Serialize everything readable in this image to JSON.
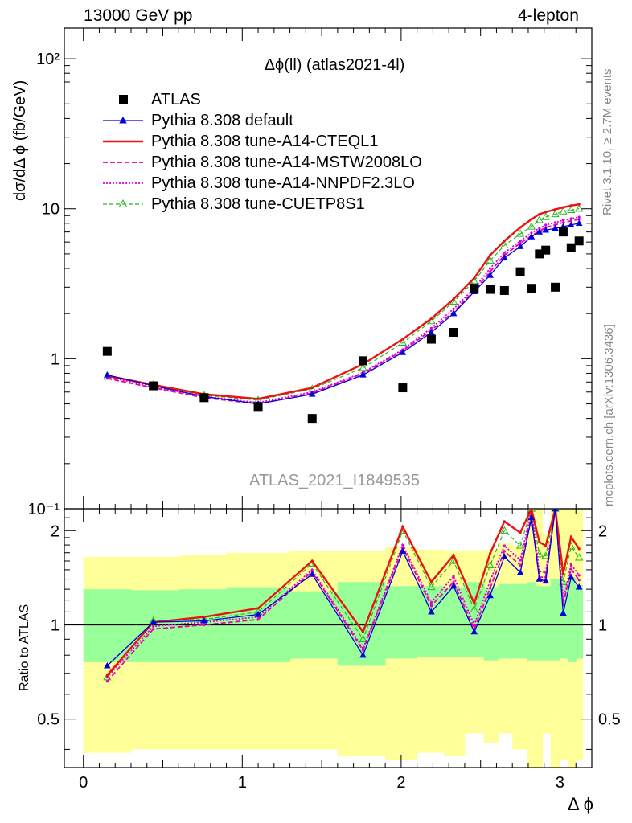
{
  "header": {
    "energy_label": "13000 GeV pp",
    "process_label": "4-lepton"
  },
  "side": {
    "rivet_label": "Rivet 3.1.10, ≥ 2.7M events",
    "mcplots_label": "mcplots.cern.ch [arXiv:1306.3436]"
  },
  "main_plot": {
    "title": "Δϕ(ll) (atlas2021-4l)",
    "ylabel": "dσ/dΔ ϕ (fb/GeV)",
    "analysis_id": "ATLAS_2021_I1849535",
    "y_tick_labels": [
      "10²",
      "10",
      "1",
      "10⁻¹"
    ]
  },
  "ratio_plot": {
    "ylabel": "Ratio to ATLAS",
    "y_tick_labels": [
      "2",
      "1",
      "0.5"
    ]
  },
  "x_axis": {
    "label": "Δ ϕ",
    "tick_labels": [
      "0",
      "1",
      "2",
      "3"
    ]
  },
  "legend": [
    {
      "label": "ATLAS",
      "color": "#000000",
      "style": "marker-square"
    },
    {
      "label": "Pythia 8.308 default",
      "color": "#0000dd",
      "style": "solid-triangle"
    },
    {
      "label": "Pythia 8.308 tune-A14-CTEQL1",
      "color": "#ee1111",
      "style": "solid-thick"
    },
    {
      "label": "Pythia 8.308 tune-A14-MSTW2008LO",
      "color": "#ee00aa",
      "style": "dashed"
    },
    {
      "label": "Pythia 8.308 tune-A14-NNPDF2.3LO",
      "color": "#dd00dd",
      "style": "dotted"
    },
    {
      "label": "Pythia 8.308 tune-CUETP8S1",
      "color": "#22bb22",
      "style": "dashed-open-triangle"
    }
  ],
  "chart_data": {
    "type": "scatter",
    "x_range": [
      -0.12,
      3.2
    ],
    "main_y_range": [
      0.1,
      160
    ],
    "main_y_scale": "log",
    "ratio_y_range": [
      0.35,
      2.35
    ],
    "ratio_y_scale": "log",
    "x": [
      0.15,
      0.44,
      0.76,
      1.1,
      1.44,
      1.76,
      2.01,
      2.19,
      2.33,
      2.46,
      2.56,
      2.65,
      2.75,
      2.82,
      2.87,
      2.91,
      2.97,
      3.02,
      3.07,
      3.12
    ],
    "atlas": [
      1.12,
      0.66,
      0.55,
      0.48,
      0.4,
      0.97,
      0.64,
      1.35,
      1.5,
      2.95,
      2.9,
      2.85,
      3.8,
      2.95,
      5.0,
      5.3,
      3.0,
      7.0,
      5.5,
      6.1
    ],
    "series": [
      {
        "name": "Pythia 8.308 default",
        "values": [
          0.78,
          0.66,
          0.56,
          0.5,
          0.58,
          0.78,
          1.1,
          1.5,
          2.0,
          2.8,
          3.6,
          4.7,
          5.6,
          6.5,
          7.0,
          7.2,
          7.4,
          7.6,
          7.8,
          8.0
        ]
      },
      {
        "name": "Pythia 8.308 tune-A14-CTEQL1",
        "values": [
          0.77,
          0.67,
          0.58,
          0.54,
          0.64,
          0.92,
          1.35,
          1.85,
          2.5,
          3.45,
          4.9,
          6.1,
          7.5,
          8.5,
          9.2,
          9.5,
          9.9,
          10.2,
          10.5,
          10.7
        ]
      },
      {
        "name": "Pythia 8.308 tune-A14-MSTW2008LO",
        "values": [
          0.74,
          0.64,
          0.55,
          0.5,
          0.59,
          0.8,
          1.13,
          1.55,
          2.05,
          2.85,
          3.8,
          4.9,
          5.9,
          6.6,
          7.1,
          7.5,
          7.8,
          8.1,
          8.3,
          8.5
        ]
      },
      {
        "name": "Pythia 8.308 tune-A14-NNPDF2.3LO",
        "values": [
          0.76,
          0.65,
          0.56,
          0.51,
          0.6,
          0.81,
          1.15,
          1.6,
          2.15,
          2.95,
          4.0,
          5.1,
          6.1,
          6.9,
          7.4,
          7.8,
          8.1,
          8.4,
          8.6,
          8.8
        ]
      },
      {
        "name": "Pythia 8.308 tune-CUETP8S1",
        "values": [
          0.76,
          0.67,
          0.57,
          0.53,
          0.63,
          0.87,
          1.28,
          1.78,
          2.4,
          3.3,
          4.5,
          5.7,
          6.8,
          7.6,
          8.4,
          8.8,
          9.2,
          9.6,
          9.8,
          10.0
        ]
      }
    ],
    "ratio_series": [
      {
        "name": "Pythia 8.308 default",
        "values": [
          0.74,
          1.02,
          1.03,
          1.08,
          1.45,
          0.8,
          1.72,
          1.1,
          1.33,
          0.95,
          1.24,
          1.65,
          1.47,
          2.2,
          1.4,
          1.38,
          2.47,
          1.09,
          1.42,
          1.32
        ]
      },
      {
        "name": "Pythia 8.308 tune-A14-CTEQL1",
        "values": [
          0.69,
          1.02,
          1.06,
          1.13,
          1.6,
          0.95,
          2.06,
          1.37,
          1.67,
          1.17,
          1.69,
          2.14,
          1.97,
          2.85,
          1.84,
          1.79,
          3.3,
          1.46,
          1.91,
          1.75
        ]
      },
      {
        "name": "Pythia 8.308 tune-A14-MSTW2008LO",
        "values": [
          0.66,
          0.97,
          1.0,
          1.04,
          1.48,
          0.83,
          1.77,
          1.15,
          1.37,
          0.97,
          1.31,
          1.72,
          1.55,
          2.24,
          1.42,
          1.42,
          2.6,
          1.16,
          1.51,
          1.39
        ]
      },
      {
        "name": "Pythia 8.308 tune-A14-NNPDF2.3LO",
        "values": [
          0.68,
          0.99,
          1.02,
          1.06,
          1.5,
          0.84,
          1.8,
          1.18,
          1.43,
          1.0,
          1.38,
          1.79,
          1.61,
          2.34,
          1.48,
          1.47,
          2.7,
          1.2,
          1.56,
          1.44
        ]
      },
      {
        "name": "Pythia 8.308 tune-CUETP8S1",
        "values": [
          0.68,
          1.03,
          1.04,
          1.1,
          1.57,
          0.9,
          2.0,
          1.32,
          1.6,
          1.12,
          1.55,
          2.0,
          1.79,
          2.6,
          1.68,
          1.66,
          3.05,
          1.37,
          1.78,
          1.64
        ]
      }
    ],
    "bands": {
      "edges": [
        0.0,
        0.3,
        0.6,
        0.9,
        1.3,
        1.6,
        1.9,
        2.1,
        2.27,
        2.4,
        2.52,
        2.61,
        2.7,
        2.79,
        2.85,
        2.89,
        2.94,
        3.0,
        3.05,
        3.1,
        3.142
      ],
      "green_lo": [
        0.76,
        0.76,
        0.76,
        0.76,
        0.78,
        0.74,
        0.78,
        0.79,
        0.79,
        0.79,
        0.77,
        0.78,
        0.78,
        0.77,
        0.77,
        0.77,
        0.77,
        0.78,
        0.76,
        0.78
      ],
      "green_hi": [
        1.3,
        1.29,
        1.3,
        1.32,
        1.28,
        1.37,
        1.33,
        1.33,
        1.32,
        1.37,
        1.32,
        1.35,
        1.35,
        1.37,
        1.33,
        1.33,
        1.4,
        1.36,
        1.42,
        1.34
      ],
      "yellow_lo": [
        0.39,
        0.4,
        0.4,
        0.4,
        0.4,
        0.38,
        0.37,
        0.39,
        0.38,
        0.45,
        0.42,
        0.45,
        0.4,
        0.35,
        0.35,
        0.45,
        0.35,
        0.37,
        0.35,
        0.37
      ],
      "yellow_hi": [
        1.65,
        1.65,
        1.67,
        1.7,
        1.72,
        1.72,
        1.77,
        1.74,
        1.73,
        1.73,
        1.74,
        1.83,
        1.79,
        2.35,
        2.35,
        1.95,
        2.35,
        2.35,
        2.35,
        2.35
      ]
    }
  }
}
